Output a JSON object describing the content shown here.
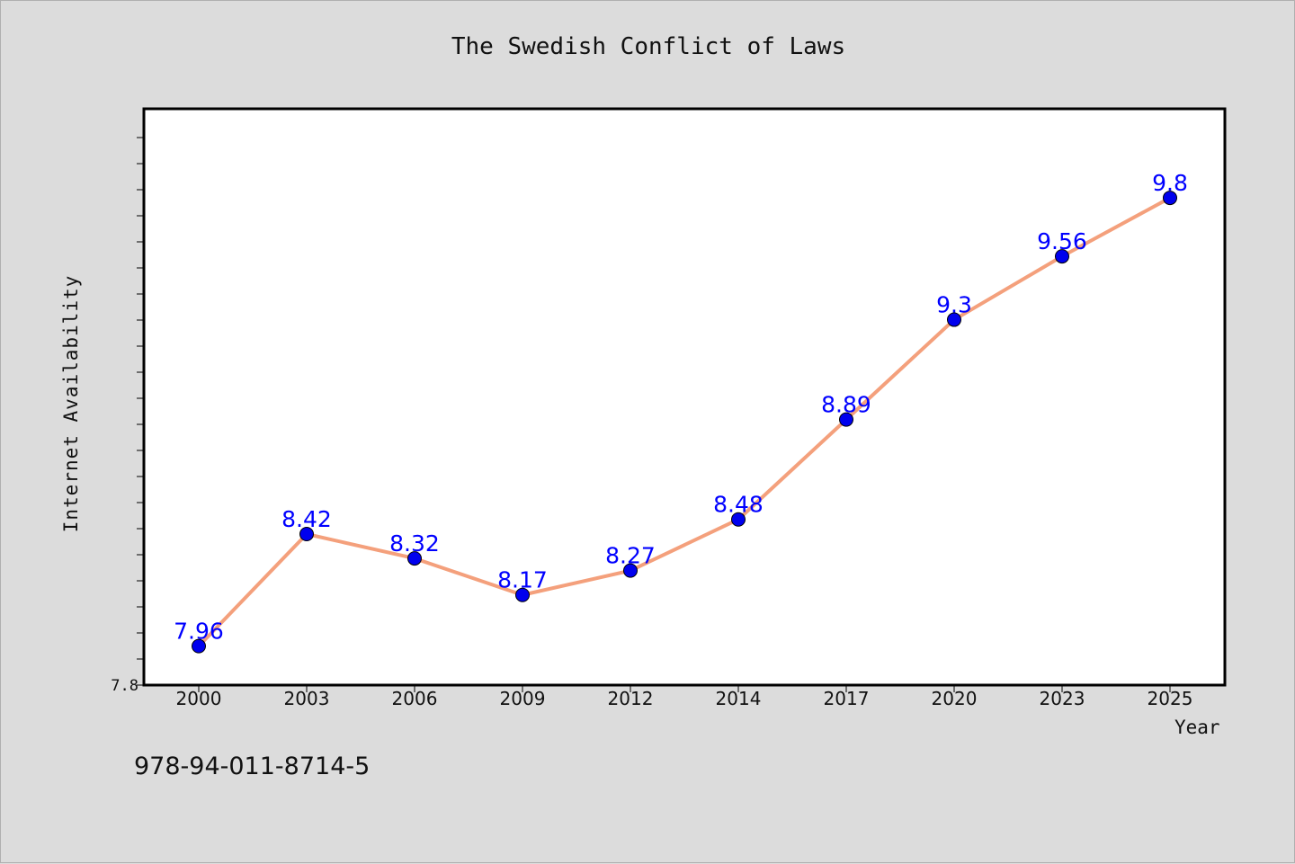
{
  "chart_data": {
    "type": "line",
    "title": "The Swedish Conflict of Laws",
    "xlabel": "Year",
    "ylabel": "Internet Availability",
    "categories": [
      "2000",
      "2003",
      "2006",
      "2009",
      "2012",
      "2014",
      "2017",
      "2020",
      "2023",
      "2025"
    ],
    "series": [
      {
        "values": [
          7.96,
          8.42,
          8.32,
          8.17,
          8.27,
          8.48,
          8.89,
          9.3,
          9.56,
          9.8
        ],
        "labels": [
          "7.96",
          "8.42",
          "8.32",
          "8.17",
          "8.27",
          "8.48",
          "8.89",
          "9.3",
          "9.56",
          "9.8"
        ],
        "line_color": "#f4a07c",
        "marker_color": "#0000ee",
        "label_color": "#0000ff"
      }
    ],
    "ylim": [
      7.8,
      10.0
    ],
    "y_tick_labels": [
      "7.8"
    ],
    "grid": false,
    "legend": "none"
  },
  "footer_text": "978-94-011-8714-5",
  "colors": {
    "background": "#dcdcdc",
    "plot_background": "#ffffff",
    "axis": "#000000"
  }
}
